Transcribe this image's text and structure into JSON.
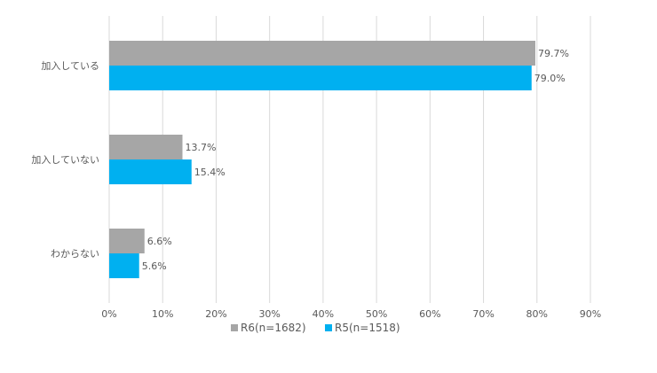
{
  "chart_data": {
    "type": "bar",
    "orientation": "horizontal",
    "categories": [
      "加入している",
      "加入していない",
      "わからない"
    ],
    "series": [
      {
        "name": "R6(n=1682)",
        "values": [
          79.7,
          13.7,
          6.6
        ],
        "labels": [
          "79.7%",
          "13.7%",
          "6.6%"
        ],
        "color": "#a6a6a6"
      },
      {
        "name": "R5(n=1518)",
        "values": [
          79.0,
          15.4,
          5.6
        ],
        "labels": [
          "79.0%",
          "15.4%",
          "5.6%"
        ],
        "color": "#00b0f0"
      }
    ],
    "x_ticks": [
      "0%",
      "10%",
      "20%",
      "30%",
      "40%",
      "50%",
      "60%",
      "70%",
      "80%",
      "90%"
    ],
    "xlim": [
      0,
      90
    ],
    "grid": true,
    "legend_position": "bottom"
  }
}
